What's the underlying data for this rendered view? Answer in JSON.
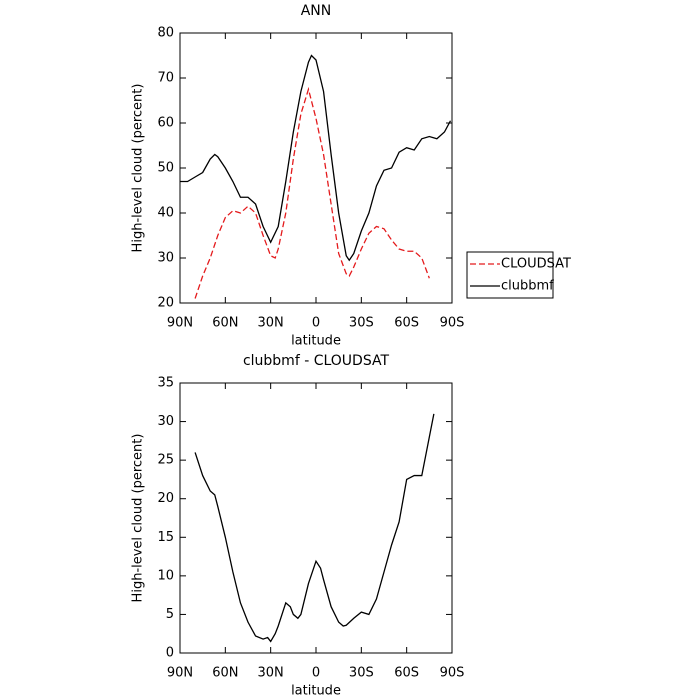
{
  "chart_data": [
    {
      "type": "line",
      "title": "ANN",
      "xlabel": "latitude",
      "ylabel": "High-level cloud (percent)",
      "xlim": [
        90,
        -90
      ],
      "xticks": [
        {
          "value": 90,
          "label": "90N"
        },
        {
          "value": 60,
          "label": "60N"
        },
        {
          "value": 30,
          "label": "30N"
        },
        0,
        {
          "value": -30,
          "label": "30S"
        },
        {
          "value": -60,
          "label": "60S"
        },
        {
          "value": -90,
          "label": "90S"
        }
      ],
      "ylim": [
        20,
        80
      ],
      "yticks": [
        20,
        30,
        40,
        50,
        60,
        70,
        80
      ],
      "legend": "right",
      "series": [
        {
          "name": "CLOUDSAT",
          "color": "#e41a1c",
          "linestyle": "dashed",
          "x": [
            80,
            75,
            70,
            65,
            60,
            55,
            50,
            45,
            40,
            35,
            30,
            27,
            25,
            20,
            15,
            10,
            5,
            0,
            -5,
            -10,
            -15,
            -20,
            -22,
            -25,
            -30,
            -35,
            -40,
            -45,
            -50,
            -55,
            -60,
            -65,
            -70,
            -75
          ],
          "values": [
            21,
            26,
            30,
            35,
            39,
            40.5,
            40,
            41.5,
            40,
            35,
            30.5,
            30,
            32,
            40,
            52,
            62,
            67.5,
            61,
            53,
            42,
            31,
            26.5,
            26,
            28,
            32,
            35.5,
            37,
            36.5,
            34,
            32,
            31.5,
            31.5,
            30,
            25.5
          ]
        },
        {
          "name": "clubbmf",
          "color": "#000000",
          "linestyle": "solid",
          "x": [
            90,
            85,
            80,
            75,
            70,
            67,
            65,
            60,
            55,
            50,
            45,
            40,
            35,
            30,
            25,
            20,
            15,
            10,
            5,
            3,
            0,
            -5,
            -10,
            -15,
            -20,
            -22,
            -25,
            -30,
            -35,
            -40,
            -45,
            -50,
            -55,
            -60,
            -65,
            -70,
            -75,
            -80,
            -85,
            -89
          ],
          "values": [
            47,
            47,
            48,
            49,
            52,
            53,
            52.5,
            50,
            47,
            43.5,
            43.5,
            42,
            37,
            33.5,
            37,
            47,
            58,
            67,
            73.5,
            75,
            74,
            67,
            53,
            40,
            30.5,
            29.5,
            31,
            36,
            40,
            46,
            49.5,
            50,
            53.5,
            54.5,
            54,
            56.5,
            57,
            56.5,
            58,
            60.5
          ]
        }
      ]
    },
    {
      "type": "line",
      "title": "clubbmf - CLOUDSAT",
      "xlabel": "latitude",
      "ylabel": "High-level cloud (percent)",
      "xlim": [
        90,
        -90
      ],
      "xticks": [
        {
          "value": 90,
          "label": "90N"
        },
        {
          "value": 60,
          "label": "60N"
        },
        {
          "value": 30,
          "label": "30N"
        },
        0,
        {
          "value": -30,
          "label": "30S"
        },
        {
          "value": -60,
          "label": "60S"
        },
        {
          "value": -90,
          "label": "90S"
        }
      ],
      "ylim": [
        0,
        35
      ],
      "yticks": [
        0,
        5,
        10,
        15,
        20,
        25,
        30,
        35
      ],
      "series": [
        {
          "color": "#000000",
          "linestyle": "solid",
          "x": [
            80,
            75,
            70,
            67,
            65,
            60,
            55,
            50,
            45,
            40,
            35,
            32,
            30,
            27,
            25,
            20,
            17,
            15,
            12,
            10,
            5,
            0,
            -3,
            -5,
            -10,
            -15,
            -18,
            -20,
            -25,
            -30,
            -35,
            -40,
            -45,
            -50,
            -55,
            -60,
            -65,
            -70,
            -75,
            -78
          ],
          "values": [
            26,
            23,
            21,
            20.5,
            19,
            15,
            10.5,
            6.5,
            4,
            2.2,
            1.8,
            2,
            1.5,
            2.5,
            3.5,
            6.5,
            6,
            5,
            4.5,
            5,
            9,
            11.9,
            11,
            9.5,
            6,
            4,
            3.5,
            3.6,
            4.5,
            5.3,
            5,
            7,
            10.5,
            14,
            17,
            22.5,
            23,
            23,
            28,
            31
          ]
        }
      ]
    }
  ]
}
